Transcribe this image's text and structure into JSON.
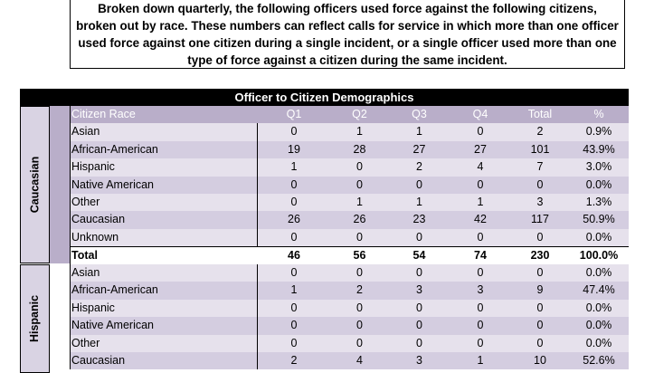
{
  "intro_text": "Broken down quarterly, the following officers used force against the following citizens, broken out by race. These numbers can reflect calls for service in which more than one officer used force against one citizen during a single incident, or a single officer used more than one type of force against a citizen during the same incident.",
  "table_title": "Officer to Citizen Demographics",
  "columns": [
    "Citizen Race",
    "Q1",
    "Q2",
    "Q3",
    "Q4",
    "Total",
    "%"
  ],
  "sections": [
    {
      "label": "Caucasian",
      "rows": [
        [
          "Asian",
          "0",
          "1",
          "1",
          "0",
          "2",
          "0.9%"
        ],
        [
          "African-American",
          "19",
          "28",
          "27",
          "27",
          "101",
          "43.9%"
        ],
        [
          "Hispanic",
          "1",
          "0",
          "2",
          "4",
          "7",
          "3.0%"
        ],
        [
          "Native American",
          "0",
          "0",
          "0",
          "0",
          "0",
          "0.0%"
        ],
        [
          "Other",
          "0",
          "1",
          "1",
          "1",
          "3",
          "1.3%"
        ],
        [
          "Caucasian",
          "26",
          "26",
          "23",
          "42",
          "117",
          "50.9%"
        ],
        [
          "Unknown",
          "0",
          "0",
          "0",
          "0",
          "0",
          "0.0%"
        ]
      ],
      "total": [
        "Total",
        "46",
        "56",
        "54",
        "74",
        "230",
        "100.0%"
      ]
    },
    {
      "label": "Hispanic",
      "rows": [
        [
          "Asian",
          "0",
          "0",
          "0",
          "0",
          "0",
          "0.0%"
        ],
        [
          "African-American",
          "1",
          "2",
          "3",
          "3",
          "9",
          "47.4%"
        ],
        [
          "Hispanic",
          "0",
          "0",
          "0",
          "0",
          "0",
          "0.0%"
        ],
        [
          "Native American",
          "0",
          "0",
          "0",
          "0",
          "0",
          "0.0%"
        ],
        [
          "Other",
          "0",
          "0",
          "0",
          "0",
          "0",
          "0.0%"
        ],
        [
          "Caucasian",
          "2",
          "4",
          "3",
          "1",
          "10",
          "52.6%"
        ]
      ]
    }
  ]
}
